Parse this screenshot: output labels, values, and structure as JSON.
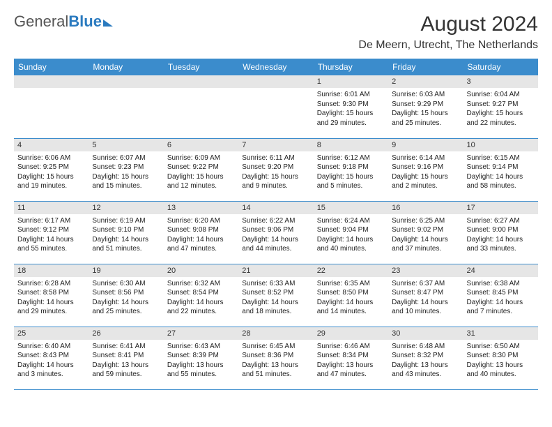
{
  "brand": {
    "part1": "General",
    "part2": "Blue"
  },
  "title": "August 2024",
  "location": "De Meern, Utrecht, The Netherlands",
  "weekdays": [
    "Sunday",
    "Monday",
    "Tuesday",
    "Wednesday",
    "Thursday",
    "Friday",
    "Saturday"
  ],
  "colors": {
    "header_bg": "#3b8ccc",
    "header_text": "#ffffff",
    "daynum_bg": "#e6e6e6",
    "border": "#3b8ccc",
    "text": "#222222",
    "page_bg": "#ffffff"
  },
  "typography": {
    "title_fontsize": 30,
    "location_fontsize": 16,
    "weekday_fontsize": 12,
    "daynum_fontsize": 11,
    "body_fontsize": 10
  },
  "layout": {
    "columns": 7,
    "rows": 5,
    "leading_empty": 4
  },
  "days": [
    {
      "n": "1",
      "sunrise": "Sunrise: 6:01 AM",
      "sunset": "Sunset: 9:30 PM",
      "daylight": "Daylight: 15 hours and 29 minutes."
    },
    {
      "n": "2",
      "sunrise": "Sunrise: 6:03 AM",
      "sunset": "Sunset: 9:29 PM",
      "daylight": "Daylight: 15 hours and 25 minutes."
    },
    {
      "n": "3",
      "sunrise": "Sunrise: 6:04 AM",
      "sunset": "Sunset: 9:27 PM",
      "daylight": "Daylight: 15 hours and 22 minutes."
    },
    {
      "n": "4",
      "sunrise": "Sunrise: 6:06 AM",
      "sunset": "Sunset: 9:25 PM",
      "daylight": "Daylight: 15 hours and 19 minutes."
    },
    {
      "n": "5",
      "sunrise": "Sunrise: 6:07 AM",
      "sunset": "Sunset: 9:23 PM",
      "daylight": "Daylight: 15 hours and 15 minutes."
    },
    {
      "n": "6",
      "sunrise": "Sunrise: 6:09 AM",
      "sunset": "Sunset: 9:22 PM",
      "daylight": "Daylight: 15 hours and 12 minutes."
    },
    {
      "n": "7",
      "sunrise": "Sunrise: 6:11 AM",
      "sunset": "Sunset: 9:20 PM",
      "daylight": "Daylight: 15 hours and 9 minutes."
    },
    {
      "n": "8",
      "sunrise": "Sunrise: 6:12 AM",
      "sunset": "Sunset: 9:18 PM",
      "daylight": "Daylight: 15 hours and 5 minutes."
    },
    {
      "n": "9",
      "sunrise": "Sunrise: 6:14 AM",
      "sunset": "Sunset: 9:16 PM",
      "daylight": "Daylight: 15 hours and 2 minutes."
    },
    {
      "n": "10",
      "sunrise": "Sunrise: 6:15 AM",
      "sunset": "Sunset: 9:14 PM",
      "daylight": "Daylight: 14 hours and 58 minutes."
    },
    {
      "n": "11",
      "sunrise": "Sunrise: 6:17 AM",
      "sunset": "Sunset: 9:12 PM",
      "daylight": "Daylight: 14 hours and 55 minutes."
    },
    {
      "n": "12",
      "sunrise": "Sunrise: 6:19 AM",
      "sunset": "Sunset: 9:10 PM",
      "daylight": "Daylight: 14 hours and 51 minutes."
    },
    {
      "n": "13",
      "sunrise": "Sunrise: 6:20 AM",
      "sunset": "Sunset: 9:08 PM",
      "daylight": "Daylight: 14 hours and 47 minutes."
    },
    {
      "n": "14",
      "sunrise": "Sunrise: 6:22 AM",
      "sunset": "Sunset: 9:06 PM",
      "daylight": "Daylight: 14 hours and 44 minutes."
    },
    {
      "n": "15",
      "sunrise": "Sunrise: 6:24 AM",
      "sunset": "Sunset: 9:04 PM",
      "daylight": "Daylight: 14 hours and 40 minutes."
    },
    {
      "n": "16",
      "sunrise": "Sunrise: 6:25 AM",
      "sunset": "Sunset: 9:02 PM",
      "daylight": "Daylight: 14 hours and 37 minutes."
    },
    {
      "n": "17",
      "sunrise": "Sunrise: 6:27 AM",
      "sunset": "Sunset: 9:00 PM",
      "daylight": "Daylight: 14 hours and 33 minutes."
    },
    {
      "n": "18",
      "sunrise": "Sunrise: 6:28 AM",
      "sunset": "Sunset: 8:58 PM",
      "daylight": "Daylight: 14 hours and 29 minutes."
    },
    {
      "n": "19",
      "sunrise": "Sunrise: 6:30 AM",
      "sunset": "Sunset: 8:56 PM",
      "daylight": "Daylight: 14 hours and 25 minutes."
    },
    {
      "n": "20",
      "sunrise": "Sunrise: 6:32 AM",
      "sunset": "Sunset: 8:54 PM",
      "daylight": "Daylight: 14 hours and 22 minutes."
    },
    {
      "n": "21",
      "sunrise": "Sunrise: 6:33 AM",
      "sunset": "Sunset: 8:52 PM",
      "daylight": "Daylight: 14 hours and 18 minutes."
    },
    {
      "n": "22",
      "sunrise": "Sunrise: 6:35 AM",
      "sunset": "Sunset: 8:50 PM",
      "daylight": "Daylight: 14 hours and 14 minutes."
    },
    {
      "n": "23",
      "sunrise": "Sunrise: 6:37 AM",
      "sunset": "Sunset: 8:47 PM",
      "daylight": "Daylight: 14 hours and 10 minutes."
    },
    {
      "n": "24",
      "sunrise": "Sunrise: 6:38 AM",
      "sunset": "Sunset: 8:45 PM",
      "daylight": "Daylight: 14 hours and 7 minutes."
    },
    {
      "n": "25",
      "sunrise": "Sunrise: 6:40 AM",
      "sunset": "Sunset: 8:43 PM",
      "daylight": "Daylight: 14 hours and 3 minutes."
    },
    {
      "n": "26",
      "sunrise": "Sunrise: 6:41 AM",
      "sunset": "Sunset: 8:41 PM",
      "daylight": "Daylight: 13 hours and 59 minutes."
    },
    {
      "n": "27",
      "sunrise": "Sunrise: 6:43 AM",
      "sunset": "Sunset: 8:39 PM",
      "daylight": "Daylight: 13 hours and 55 minutes."
    },
    {
      "n": "28",
      "sunrise": "Sunrise: 6:45 AM",
      "sunset": "Sunset: 8:36 PM",
      "daylight": "Daylight: 13 hours and 51 minutes."
    },
    {
      "n": "29",
      "sunrise": "Sunrise: 6:46 AM",
      "sunset": "Sunset: 8:34 PM",
      "daylight": "Daylight: 13 hours and 47 minutes."
    },
    {
      "n": "30",
      "sunrise": "Sunrise: 6:48 AM",
      "sunset": "Sunset: 8:32 PM",
      "daylight": "Daylight: 13 hours and 43 minutes."
    },
    {
      "n": "31",
      "sunrise": "Sunrise: 6:50 AM",
      "sunset": "Sunset: 8:30 PM",
      "daylight": "Daylight: 13 hours and 40 minutes."
    }
  ]
}
